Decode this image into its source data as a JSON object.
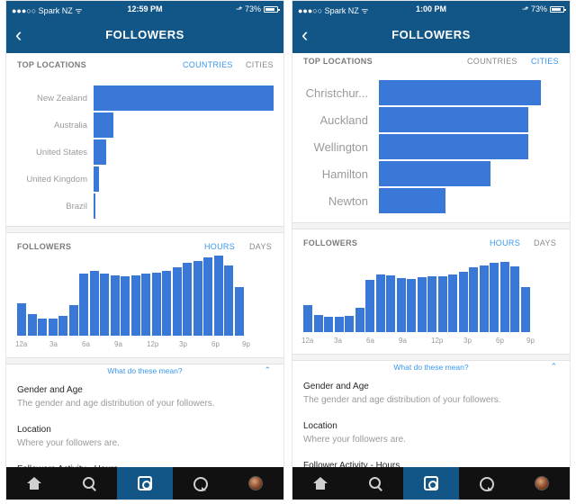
{
  "colors": {
    "header": "#125688",
    "accent": "#3897f0",
    "bar": "#3a78d8",
    "tabbar": "#111111"
  },
  "phones": [
    {
      "status": {
        "carrier": "●●●○○ Spark NZ ᯤ",
        "time": "12:59 PM",
        "battery": "⬏ 73%"
      },
      "title": "FOLLOWERS",
      "locations": {
        "title": "TOP LOCATIONS",
        "toggle_left": "COUNTRIES",
        "toggle_right": "CITIES",
        "active": "left",
        "items": [
          {
            "label": "New Zealand",
            "value": 1.0
          },
          {
            "label": "Australia",
            "value": 0.11
          },
          {
            "label": "United States",
            "value": 0.07
          },
          {
            "label": "United Kingdom",
            "value": 0.03
          },
          {
            "label": "Brazil",
            "value": 0.01
          }
        ]
      },
      "followers": {
        "title": "FOLLOWERS",
        "toggle_left": "HOURS",
        "toggle_right": "DAYS",
        "active": "left",
        "ticks": [
          "12a",
          "3a",
          "6a",
          "9a",
          "12p",
          "3p",
          "6p",
          "9p"
        ],
        "bars": [
          0.4,
          0.27,
          0.21,
          0.21,
          0.24,
          0.38,
          0.77,
          0.8,
          0.77,
          0.74,
          0.73,
          0.75,
          0.77,
          0.78,
          0.8,
          0.84,
          0.9,
          0.92,
          0.97,
          0.99,
          0.87,
          0.6
        ]
      },
      "info": {
        "link": "What do these mean?",
        "sections": [
          {
            "title": "Gender and Age",
            "desc": "The gender and age distribution of your followers."
          },
          {
            "title": "Location",
            "desc": "Where your followers are."
          },
          {
            "title": "Followers Activity - Hours",
            "desc": ""
          }
        ]
      }
    },
    {
      "status": {
        "carrier": "●●●○○ Spark NZ ᯤ",
        "time": "1:00 PM",
        "battery": "⬏ 73%"
      },
      "title": "FOLLOWERS",
      "locations": {
        "title": "TOP LOCATIONS",
        "toggle_left": "COUNTRIES",
        "toggle_right": "CITIES",
        "active": "right",
        "items": [
          {
            "label": "Christchur...",
            "value": 1.0
          },
          {
            "label": "Auckland",
            "value": 0.92
          },
          {
            "label": "Wellington",
            "value": 0.92
          },
          {
            "label": "Hamilton",
            "value": 0.69
          },
          {
            "label": "Newton",
            "value": 0.41
          }
        ]
      },
      "followers": {
        "title": "FOLLOWERS",
        "toggle_left": "HOURS",
        "toggle_right": "DAYS",
        "active": "left",
        "ticks": [
          "12a",
          "3a",
          "6a",
          "9a",
          "12p",
          "3p",
          "6p",
          "9p"
        ],
        "bars": [
          0.37,
          0.24,
          0.21,
          0.21,
          0.23,
          0.34,
          0.72,
          0.8,
          0.79,
          0.75,
          0.74,
          0.76,
          0.78,
          0.78,
          0.8,
          0.84,
          0.9,
          0.92,
          0.96,
          0.98,
          0.91,
          0.62
        ]
      },
      "info": {
        "link": "What do these mean?",
        "sections": [
          {
            "title": "Gender and Age",
            "desc": "The gender and age distribution of your followers."
          },
          {
            "title": "Location",
            "desc": "Where your followers are."
          },
          {
            "title": "Follower Activity - Hours",
            "desc": ""
          }
        ]
      }
    }
  ],
  "tabs": [
    {
      "icon": "home-icon"
    },
    {
      "icon": "search-icon"
    },
    {
      "icon": "camera-icon",
      "active": true
    },
    {
      "icon": "activity-icon"
    },
    {
      "icon": "profile-avatar-icon"
    }
  ]
}
